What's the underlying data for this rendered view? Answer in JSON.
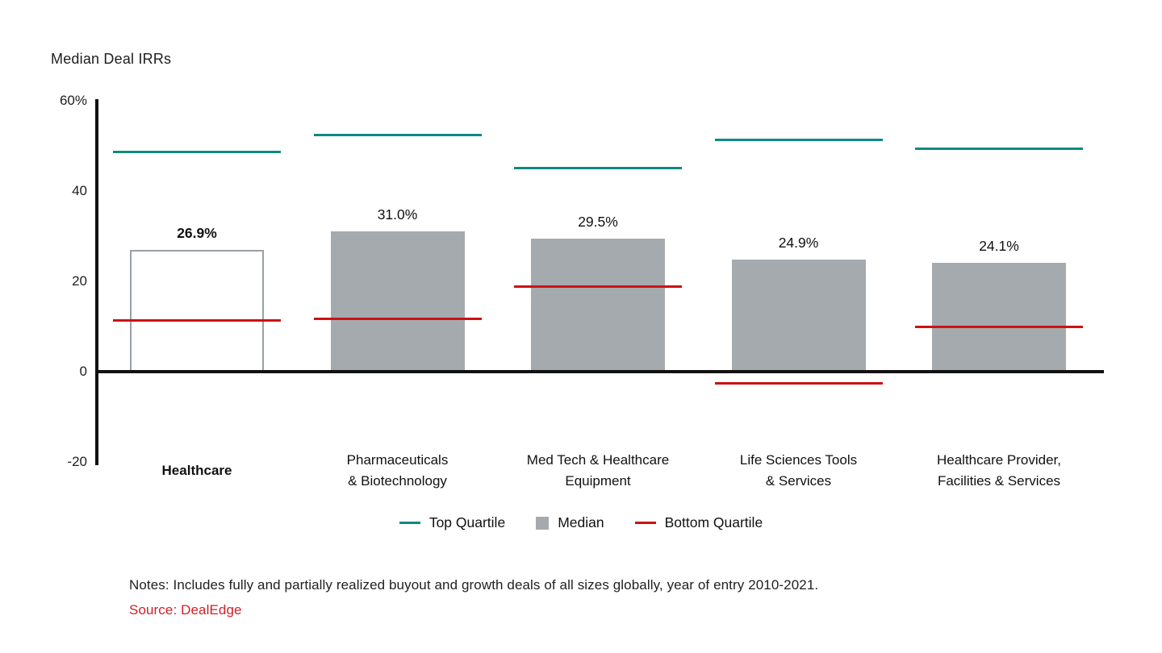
{
  "colors": {
    "top_quartile": "#0e8a80",
    "bottom_quartile": "#cc1212",
    "median_fill": "#a5aaae",
    "highlight_fill": "#ffffff",
    "highlight_outline": "#9aa0a5",
    "axis": "#111111",
    "text": "#1d1d1d",
    "source_red": "#cc2127"
  },
  "chart_data": {
    "type": "bar",
    "title": "Median Deal IRRs",
    "xlabel": "",
    "ylabel": "Median Deal IRRs",
    "ylim": [
      -20,
      60
    ],
    "grid": false,
    "legend_position": "bottom",
    "yticks": [
      {
        "value": 60,
        "label": "60%"
      },
      {
        "value": 40,
        "label": "40"
      },
      {
        "value": 20,
        "label": "20"
      },
      {
        "value": 0,
        "label": "0"
      },
      {
        "value": -20,
        "label": "-20"
      }
    ],
    "categories": [
      "Healthcare",
      "Pharmaceuticals\n& Biotechnology",
      "Med Tech & Healthcare\nEquipment",
      "Life Sciences Tools\n& Services",
      "Healthcare Provider,\nFacilities & Services"
    ],
    "highlight_index": 0,
    "series": [
      {
        "name": "Top Quartile",
        "style": "line",
        "values": [
          48.8,
          52.5,
          45.2,
          51.5,
          49.5
        ]
      },
      {
        "name": "Median",
        "style": "bar",
        "values": [
          26.9,
          31.0,
          29.5,
          24.9,
          24.1
        ]
      },
      {
        "name": "Bottom Quartile",
        "style": "line",
        "values": [
          11.5,
          11.8,
          19.0,
          -2.5,
          10.0
        ]
      }
    ],
    "value_labels": [
      "26.9%",
      "31.0%",
      "29.5%",
      "24.9%",
      "24.1%"
    ]
  },
  "legend": {
    "items": [
      {
        "label": "Top Quartile",
        "swatch": "teal-line"
      },
      {
        "label": "Median",
        "swatch": "gray-square"
      },
      {
        "label": "Bottom Quartile",
        "swatch": "red-line"
      }
    ]
  },
  "footer": {
    "notes": "Notes: Includes fully and partially realized buyout and growth deals of all sizes globally, year of entry 2010-2021.",
    "source": "Source: DealEdge"
  }
}
